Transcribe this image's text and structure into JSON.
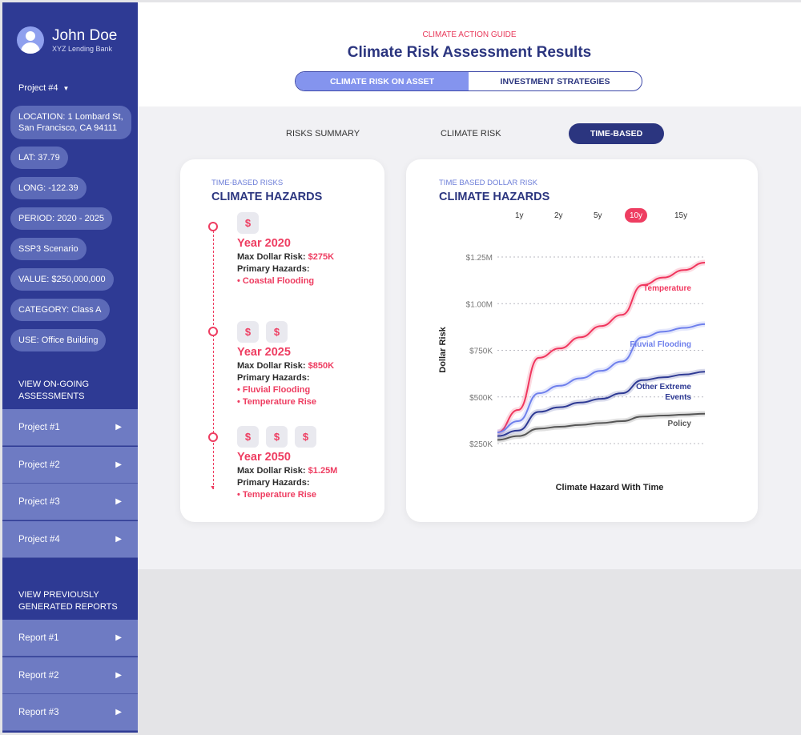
{
  "user": {
    "name": "John Doe",
    "bank": "XYZ Lending Bank"
  },
  "project_select": "Project #4",
  "details": [
    "LOCATION: 1 Lombard St,",
    "San Francisco, CA 94111",
    "LAT: 37.79",
    "LONG: -122.39",
    "PERIOD: 2020 - 2025",
    "SSP3 Scenario",
    "VALUE: $250,000,000",
    "CATEGORY: Class A",
    "USE: Office Building"
  ],
  "ongoing": {
    "heading_1": "VIEW ON-GOING",
    "heading_2": "ASSESSMENTS",
    "items": [
      "Project #1",
      "Project #2",
      "Project #3",
      "Project #4"
    ]
  },
  "reports": {
    "heading_1": "VIEW PREVIOUSLY",
    "heading_2": "GENERATED REPORTS",
    "items": [
      "Report #1",
      "Report #2",
      "Report #3"
    ]
  },
  "header": {
    "kicker": "CLIMATE ACTION GUIDE",
    "title": "Climate Risk Assessment Results",
    "seg_tabs": [
      "CLIMATE RISK ON ASSET",
      "INVESTMENT STRATEGIES"
    ]
  },
  "subtabs": [
    "RISKS SUMMARY",
    "CLIMATE RISK",
    "TIME-BASED"
  ],
  "left_card": {
    "kicker": "TIME-BASED RISKS",
    "title": "CLIMATE HAZARDS",
    "dollar_symbol": "$",
    "entries": [
      {
        "year": "Year 2020",
        "risk_label": "Max Dollar Risk:",
        "risk_value": "$275K",
        "hazards_label": "Primary Hazards:",
        "hazards": [
          "• Coastal Flooding"
        ]
      },
      {
        "year": "Year 2025",
        "risk_label": "Max Dollar Risk:",
        "risk_value": "$850K",
        "hazards_label": "Primary Hazards:",
        "hazards": [
          "• Fluvial Flooding",
          "• Temperature Rise"
        ]
      },
      {
        "year": "Year 2050",
        "risk_label": "Max Dollar Risk:",
        "risk_value": "$1.25M",
        "hazards_label": "Primary Hazards:",
        "hazards": [
          "• Temperature Rise"
        ]
      }
    ]
  },
  "right_card": {
    "kicker": "TIME BASED DOLLAR RISK",
    "title": "CLIMATE HAZARDS",
    "ranges": [
      "1y",
      "2y",
      "5y",
      "10y",
      "15y"
    ],
    "active_range": "10y"
  },
  "colors": {
    "sidebar": "#2e3a94",
    "accent": "#ee3d61",
    "navy": "#2b357f",
    "temperature": "#f0365e",
    "fluvial": "#6f80ec",
    "extreme": "#2e3a94",
    "policy": "#555555"
  },
  "chart_data": {
    "type": "line",
    "xlabel": "Climate Hazard With Time",
    "ylabel": "Dollar Risk",
    "yticks": [
      "$1.25M",
      "$1.00M",
      "$750K",
      "$500K",
      "$250K"
    ],
    "yticks_values": [
      1250000,
      1000000,
      750000,
      500000,
      250000
    ],
    "ylim": [
      250000,
      1250000
    ],
    "x": [
      0,
      1,
      2,
      3,
      4,
      5,
      6,
      7,
      8,
      9,
      10
    ],
    "series": [
      {
        "name": "Temperature",
        "label_1": "Temperature",
        "label_2": "",
        "color": "#f0365e",
        "values": [
          310000,
          430000,
          710000,
          760000,
          820000,
          880000,
          940000,
          1100000,
          1140000,
          1180000,
          1220000
        ]
      },
      {
        "name": "Fluvial Flooding",
        "label_1": "Fluvial Flooding",
        "label_2": "",
        "color": "#6f80ec",
        "values": [
          310000,
          370000,
          520000,
          560000,
          600000,
          640000,
          690000,
          820000,
          850000,
          870000,
          890000
        ]
      },
      {
        "name": "Other Extreme Events",
        "label_1": "Other Extreme",
        "label_2": "Events",
        "color": "#2e3a94",
        "values": [
          290000,
          320000,
          420000,
          445000,
          470000,
          490000,
          520000,
          590000,
          605000,
          620000,
          635000
        ]
      },
      {
        "name": "Policy",
        "label_1": "Policy",
        "label_2": "",
        "color": "#555555",
        "values": [
          270000,
          290000,
          330000,
          340000,
          350000,
          360000,
          370000,
          395000,
          400000,
          405000,
          410000
        ]
      }
    ],
    "grid": true
  }
}
